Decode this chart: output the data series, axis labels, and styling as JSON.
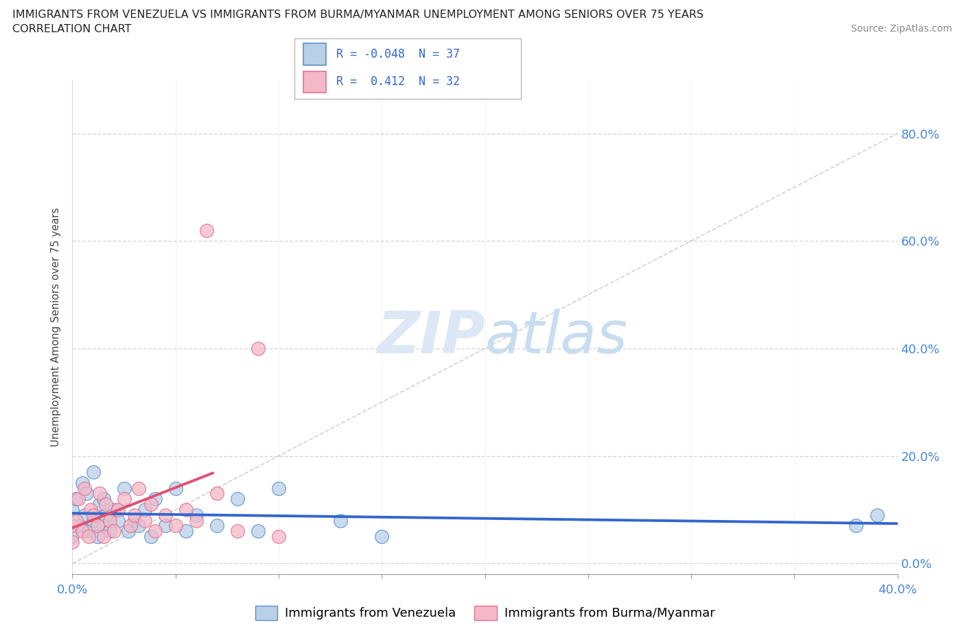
{
  "title_line1": "IMMIGRANTS FROM VENEZUELA VS IMMIGRANTS FROM BURMA/MYANMAR UNEMPLOYMENT AMONG SENIORS OVER 75 YEARS",
  "title_line2": "CORRELATION CHART",
  "source": "Source: ZipAtlas.com",
  "ylabel": "Unemployment Among Seniors over 75 years",
  "legend_blue_label": "Immigrants from Venezuela",
  "legend_pink_label": "Immigrants from Burma/Myanmar",
  "R_blue": -0.048,
  "N_blue": 37,
  "R_pink": 0.412,
  "N_pink": 32,
  "blue_scatter_face": "#b8d0e8",
  "blue_scatter_edge": "#5b8fc9",
  "pink_scatter_face": "#f5b8c8",
  "pink_scatter_edge": "#e07090",
  "trend_blue_color": "#3366CC",
  "trend_pink_color": "#E05070",
  "diag_color": "#cccccc",
  "grid_color": "#cccccc",
  "watermark_color": "#dce8f5",
  "background_color": "#ffffff",
  "ytick_color": "#4488dd",
  "xtick_color": "#4488dd",
  "venezuela_x": [
    0.0,
    0.0,
    0.002,
    0.004,
    0.005,
    0.006,
    0.007,
    0.008,
    0.01,
    0.01,
    0.012,
    0.013,
    0.015,
    0.015,
    0.016,
    0.018,
    0.02,
    0.022,
    0.025,
    0.027,
    0.03,
    0.032,
    0.035,
    0.038,
    0.04,
    0.045,
    0.05,
    0.055,
    0.06,
    0.07,
    0.08,
    0.09,
    0.1,
    0.13,
    0.15,
    0.38,
    0.39
  ],
  "venezuela_y": [
    0.05,
    0.1,
    0.12,
    0.07,
    0.15,
    0.09,
    0.13,
    0.06,
    0.08,
    0.17,
    0.05,
    0.11,
    0.07,
    0.12,
    0.09,
    0.06,
    0.1,
    0.08,
    0.14,
    0.06,
    0.08,
    0.07,
    0.1,
    0.05,
    0.12,
    0.07,
    0.14,
    0.06,
    0.09,
    0.07,
    0.12,
    0.06,
    0.14,
    0.08,
    0.05,
    0.07,
    0.09
  ],
  "burma_x": [
    0.0,
    0.0,
    0.002,
    0.003,
    0.005,
    0.006,
    0.008,
    0.009,
    0.01,
    0.012,
    0.013,
    0.015,
    0.016,
    0.018,
    0.02,
    0.022,
    0.025,
    0.028,
    0.03,
    0.032,
    0.035,
    0.038,
    0.04,
    0.045,
    0.05,
    0.055,
    0.06,
    0.065,
    0.07,
    0.08,
    0.09,
    0.1
  ],
  "burma_y": [
    0.04,
    0.07,
    0.08,
    0.12,
    0.06,
    0.14,
    0.05,
    0.1,
    0.09,
    0.07,
    0.13,
    0.05,
    0.11,
    0.08,
    0.06,
    0.1,
    0.12,
    0.07,
    0.09,
    0.14,
    0.08,
    0.11,
    0.06,
    0.09,
    0.07,
    0.1,
    0.08,
    0.62,
    0.13,
    0.06,
    0.4,
    0.05
  ],
  "xlim": [
    0.0,
    0.4
  ],
  "ylim": [
    -0.02,
    0.9
  ],
  "ytick_vals": [
    0.0,
    0.2,
    0.4,
    0.6,
    0.8
  ],
  "xtick_positions": [
    0.0,
    0.05,
    0.1,
    0.15,
    0.2,
    0.25,
    0.3,
    0.35,
    0.4
  ]
}
